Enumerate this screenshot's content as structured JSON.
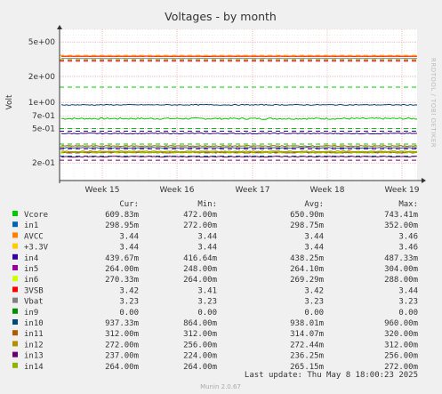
{
  "chart_data": {
    "type": "line",
    "title": "Voltages - by month",
    "ylabel": "Volt",
    "yscale": "log",
    "ylim": [
      0.125,
      7.0
    ],
    "y_ticks": [
      {
        "value": 5.0,
        "label": "5e+00"
      },
      {
        "value": 2.0,
        "label": "2e+00"
      },
      {
        "value": 1.0,
        "label": "1e+00"
      },
      {
        "value": 0.7,
        "label": "7e-01"
      },
      {
        "value": 0.5,
        "label": "5e-01"
      },
      {
        "value": 0.2,
        "label": "2e-01"
      }
    ],
    "x_ticks": [
      "Week 15",
      "Week 16",
      "Week 17",
      "Week 18",
      "Week 19"
    ],
    "side_label": "RRDTOOL / TOBI OETIKER",
    "legend_headers": {
      "cur": "Cur:",
      "min": "Min:",
      "avg": "Avg:",
      "max": "Max:"
    },
    "series": [
      {
        "name": "Vcore",
        "color": "#00cc00",
        "cur": "609.83m",
        "min": "472.00m",
        "avg": "650.90m",
        "max": "743.41m",
        "level": 0.651,
        "warn": 0.52,
        "crit": 0.48
      },
      {
        "name": "in1",
        "color": "#0066b3",
        "cur": "298.95m",
        "min": "272.00m",
        "avg": "298.75m",
        "max": "352.00m",
        "level": 0.299
      },
      {
        "name": "AVCC",
        "color": "#ff8000",
        "cur": "3.44",
        "min": "3.44",
        "avg": "3.44",
        "max": "3.46",
        "level": 3.44
      },
      {
        "name": "+3.3V",
        "color": "#ffcc00",
        "cur": "3.44",
        "min": "3.44",
        "avg": "3.44",
        "max": "3.46",
        "level": 3.44
      },
      {
        "name": "in4",
        "color": "#330099",
        "cur": "439.67m",
        "min": "416.64m",
        "avg": "438.25m",
        "max": "487.33m",
        "level": 0.438
      },
      {
        "name": "in5",
        "color": "#990099",
        "cur": "264.00m",
        "min": "248.00m",
        "avg": "264.10m",
        "max": "304.00m",
        "level": 0.264
      },
      {
        "name": "in6",
        "color": "#ccff00",
        "cur": "270.33m",
        "min": "264.00m",
        "avg": "269.29m",
        "max": "288.00m",
        "level": 0.269
      },
      {
        "name": "3VSB",
        "color": "#ff0000",
        "cur": "3.42",
        "min": "3.41",
        "avg": "3.42",
        "max": "3.44",
        "level": 3.42
      },
      {
        "name": "Vbat",
        "color": "#808080",
        "cur": "3.23",
        "min": "3.23",
        "avg": "3.23",
        "max": "3.23",
        "level": 3.23
      },
      {
        "name": "in9",
        "color": "#008f00",
        "cur": "0.00",
        "min": "0.00",
        "avg": "0.00",
        "max": "0.00",
        "level": 0
      },
      {
        "name": "in10",
        "color": "#00487d",
        "cur": "937.33m",
        "min": "864.00m",
        "avg": "938.01m",
        "max": "960.00m",
        "level": 0.938
      },
      {
        "name": "in11",
        "color": "#b35a00",
        "cur": "312.00m",
        "min": "312.00m",
        "avg": "314.07m",
        "max": "320.00m",
        "level": 0.314
      },
      {
        "name": "in12",
        "color": "#b38f00",
        "cur": "272.00m",
        "min": "256.00m",
        "avg": "272.44m",
        "max": "312.00m",
        "level": 0.272
      },
      {
        "name": "in13",
        "color": "#6b006b",
        "cur": "237.00m",
        "min": "224.00m",
        "avg": "236.25m",
        "max": "256.00m",
        "level": 0.236
      },
      {
        "name": "in14",
        "color": "#8fb300",
        "cur": "264.00m",
        "min": "264.00m",
        "avg": "265.15m",
        "max": "272.00m",
        "level": 0.265
      }
    ],
    "threshold_lines": [
      {
        "value": 3.5,
        "color": "#ff8000"
      },
      {
        "value": 3.15,
        "color": "#ff8000"
      },
      {
        "value": 3.5,
        "color": "#ffcc00"
      },
      {
        "value": 3.15,
        "color": "#ffcc00"
      },
      {
        "value": 3.0,
        "color": "#ff0000"
      },
      {
        "value": 3.07,
        "color": "#808080"
      },
      {
        "value": 1.5,
        "color": "#00cc00"
      },
      {
        "value": 0.5,
        "color": "#00cc00"
      },
      {
        "value": 0.33,
        "color": "#00cc00"
      },
      {
        "value": 0.3,
        "color": "#0066b3"
      },
      {
        "value": 0.24,
        "color": "#0066b3"
      },
      {
        "value": 0.465,
        "color": "#330099"
      },
      {
        "value": 0.29,
        "color": "#990099"
      },
      {
        "value": 0.31,
        "color": "#ccff00"
      },
      {
        "value": 0.26,
        "color": "#ccff00"
      },
      {
        "value": 0.215,
        "color": "#6b006b"
      }
    ],
    "grid": true,
    "legend_placement": "bottom"
  },
  "footer": {
    "last_update": "Last update: Thu May  8 18:00:23 2025",
    "munin": "Munin 2.0.67"
  }
}
